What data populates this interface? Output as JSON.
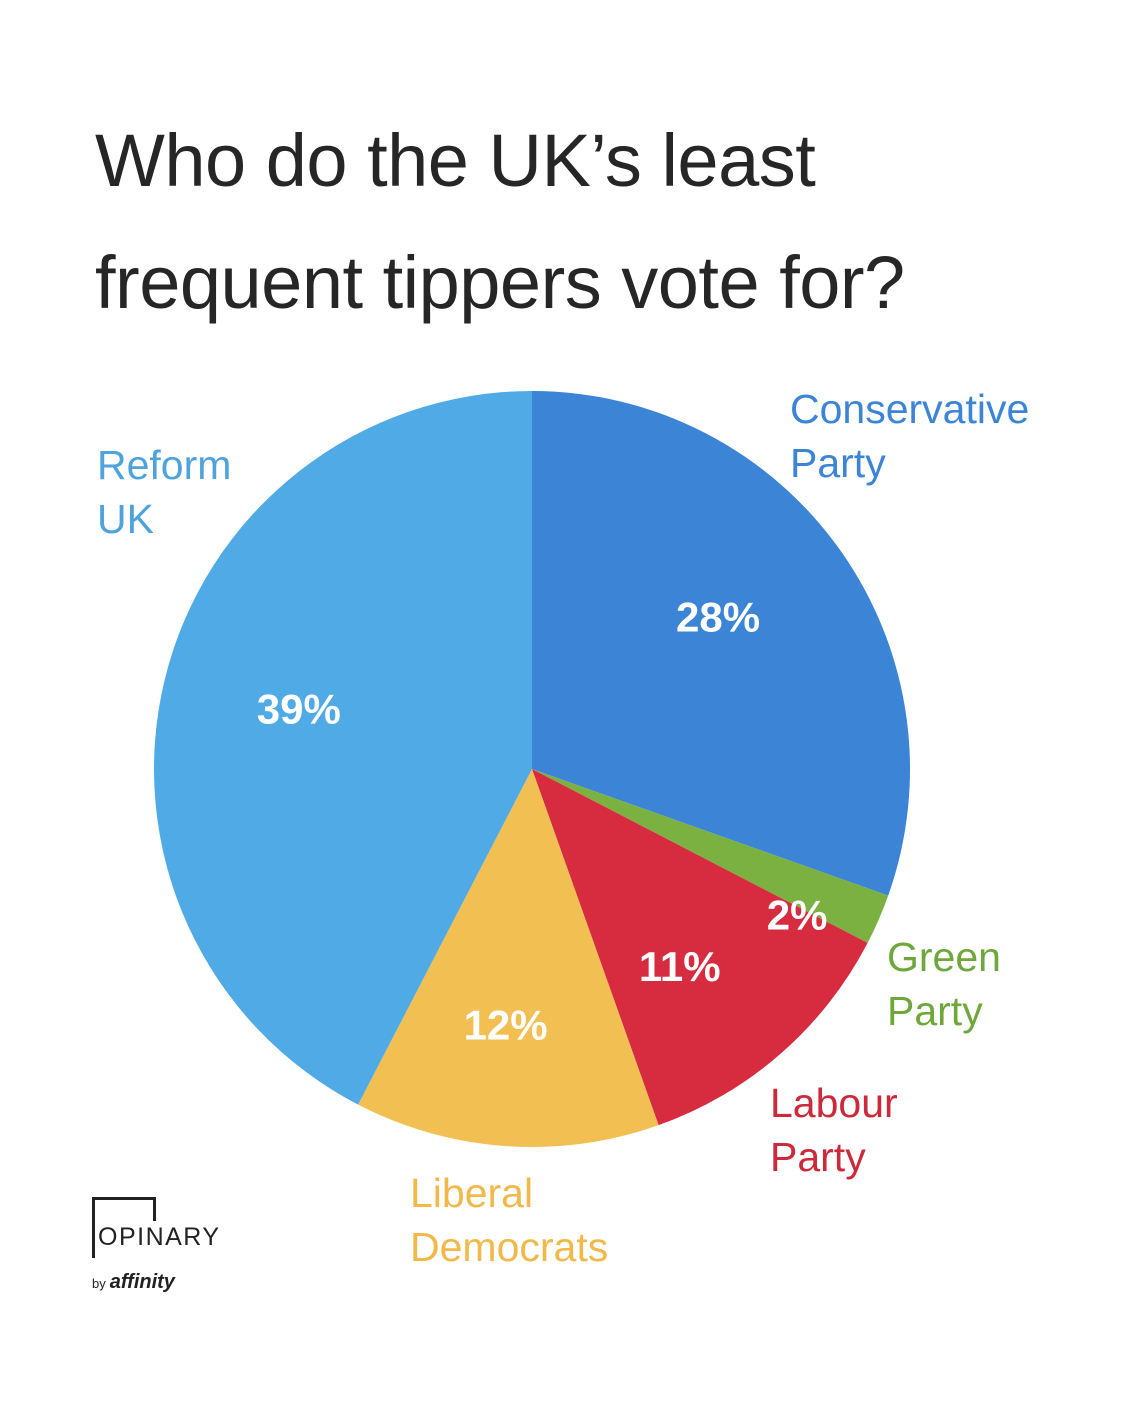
{
  "title_lines": [
    "Who do the UK’s least",
    "frequent tippers vote for?"
  ],
  "chart_data": {
    "type": "pie",
    "title": "Who do the UK’s least frequent tippers vote for?",
    "start_angle_deg": 0,
    "direction": "clockwise",
    "slices": [
      {
        "name": "Conservative Party",
        "name_lines": [
          "Conservative",
          "Party"
        ],
        "value": 28,
        "label": "28%",
        "color": "#3b84d6"
      },
      {
        "name": "Green Party",
        "name_lines": [
          "Green",
          "Party"
        ],
        "value": 2,
        "label": "2%",
        "color": "#7bb141"
      },
      {
        "name": "Labour Party",
        "name_lines": [
          "Labour",
          "Party"
        ],
        "value": 11,
        "label": "11%",
        "color": "#d72b3f"
      },
      {
        "name": "Liberal Democrats",
        "name_lines": [
          "Liberal",
          "Democrats"
        ],
        "value": 12,
        "label": "12%",
        "color": "#f2bf52"
      },
      {
        "name": "Reform UK",
        "name_lines": [
          "Reform",
          "UK"
        ],
        "value": 39,
        "label": "39%",
        "color": "#4faae6"
      }
    ]
  },
  "label_colors": {
    "Conservative Party": "#3b84d6",
    "Green Party": "#6fa83a",
    "Labour Party": "#cc2a3a",
    "Liberal Democrats": "#f0b94a",
    "Reform UK": "#4ea3dc"
  },
  "logo": {
    "brand": "OPINARY",
    "by": "by",
    "parent": "affinity"
  }
}
